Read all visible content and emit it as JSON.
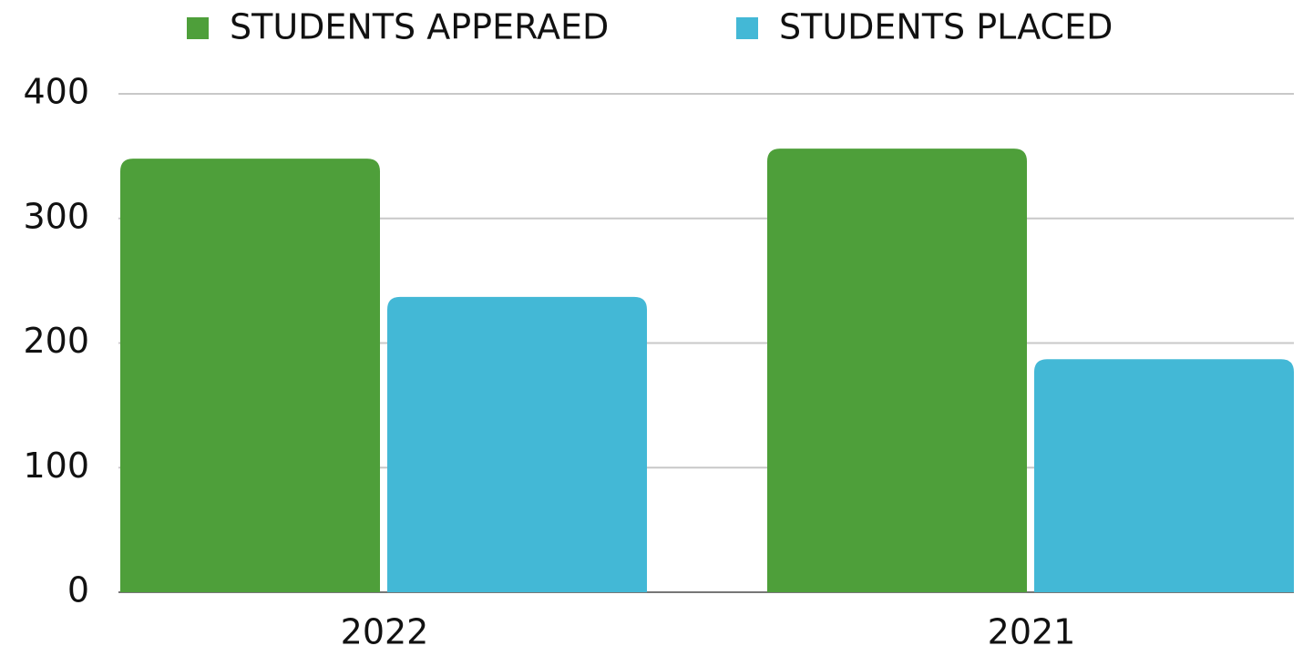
{
  "chart_data": {
    "type": "bar",
    "categories": [
      "2022",
      "2021"
    ],
    "series": [
      {
        "name": "STUDENTS APPERAED",
        "color": "#4e9f3a",
        "values": [
          348,
          356
        ]
      },
      {
        "name": "STUDENTS PLACED",
        "color": "#43b8d6",
        "values": [
          237,
          187
        ]
      }
    ],
    "ylim": [
      0,
      400
    ],
    "yticks": [
      0,
      100,
      200,
      300,
      400
    ],
    "grid": true,
    "legend": "top"
  }
}
